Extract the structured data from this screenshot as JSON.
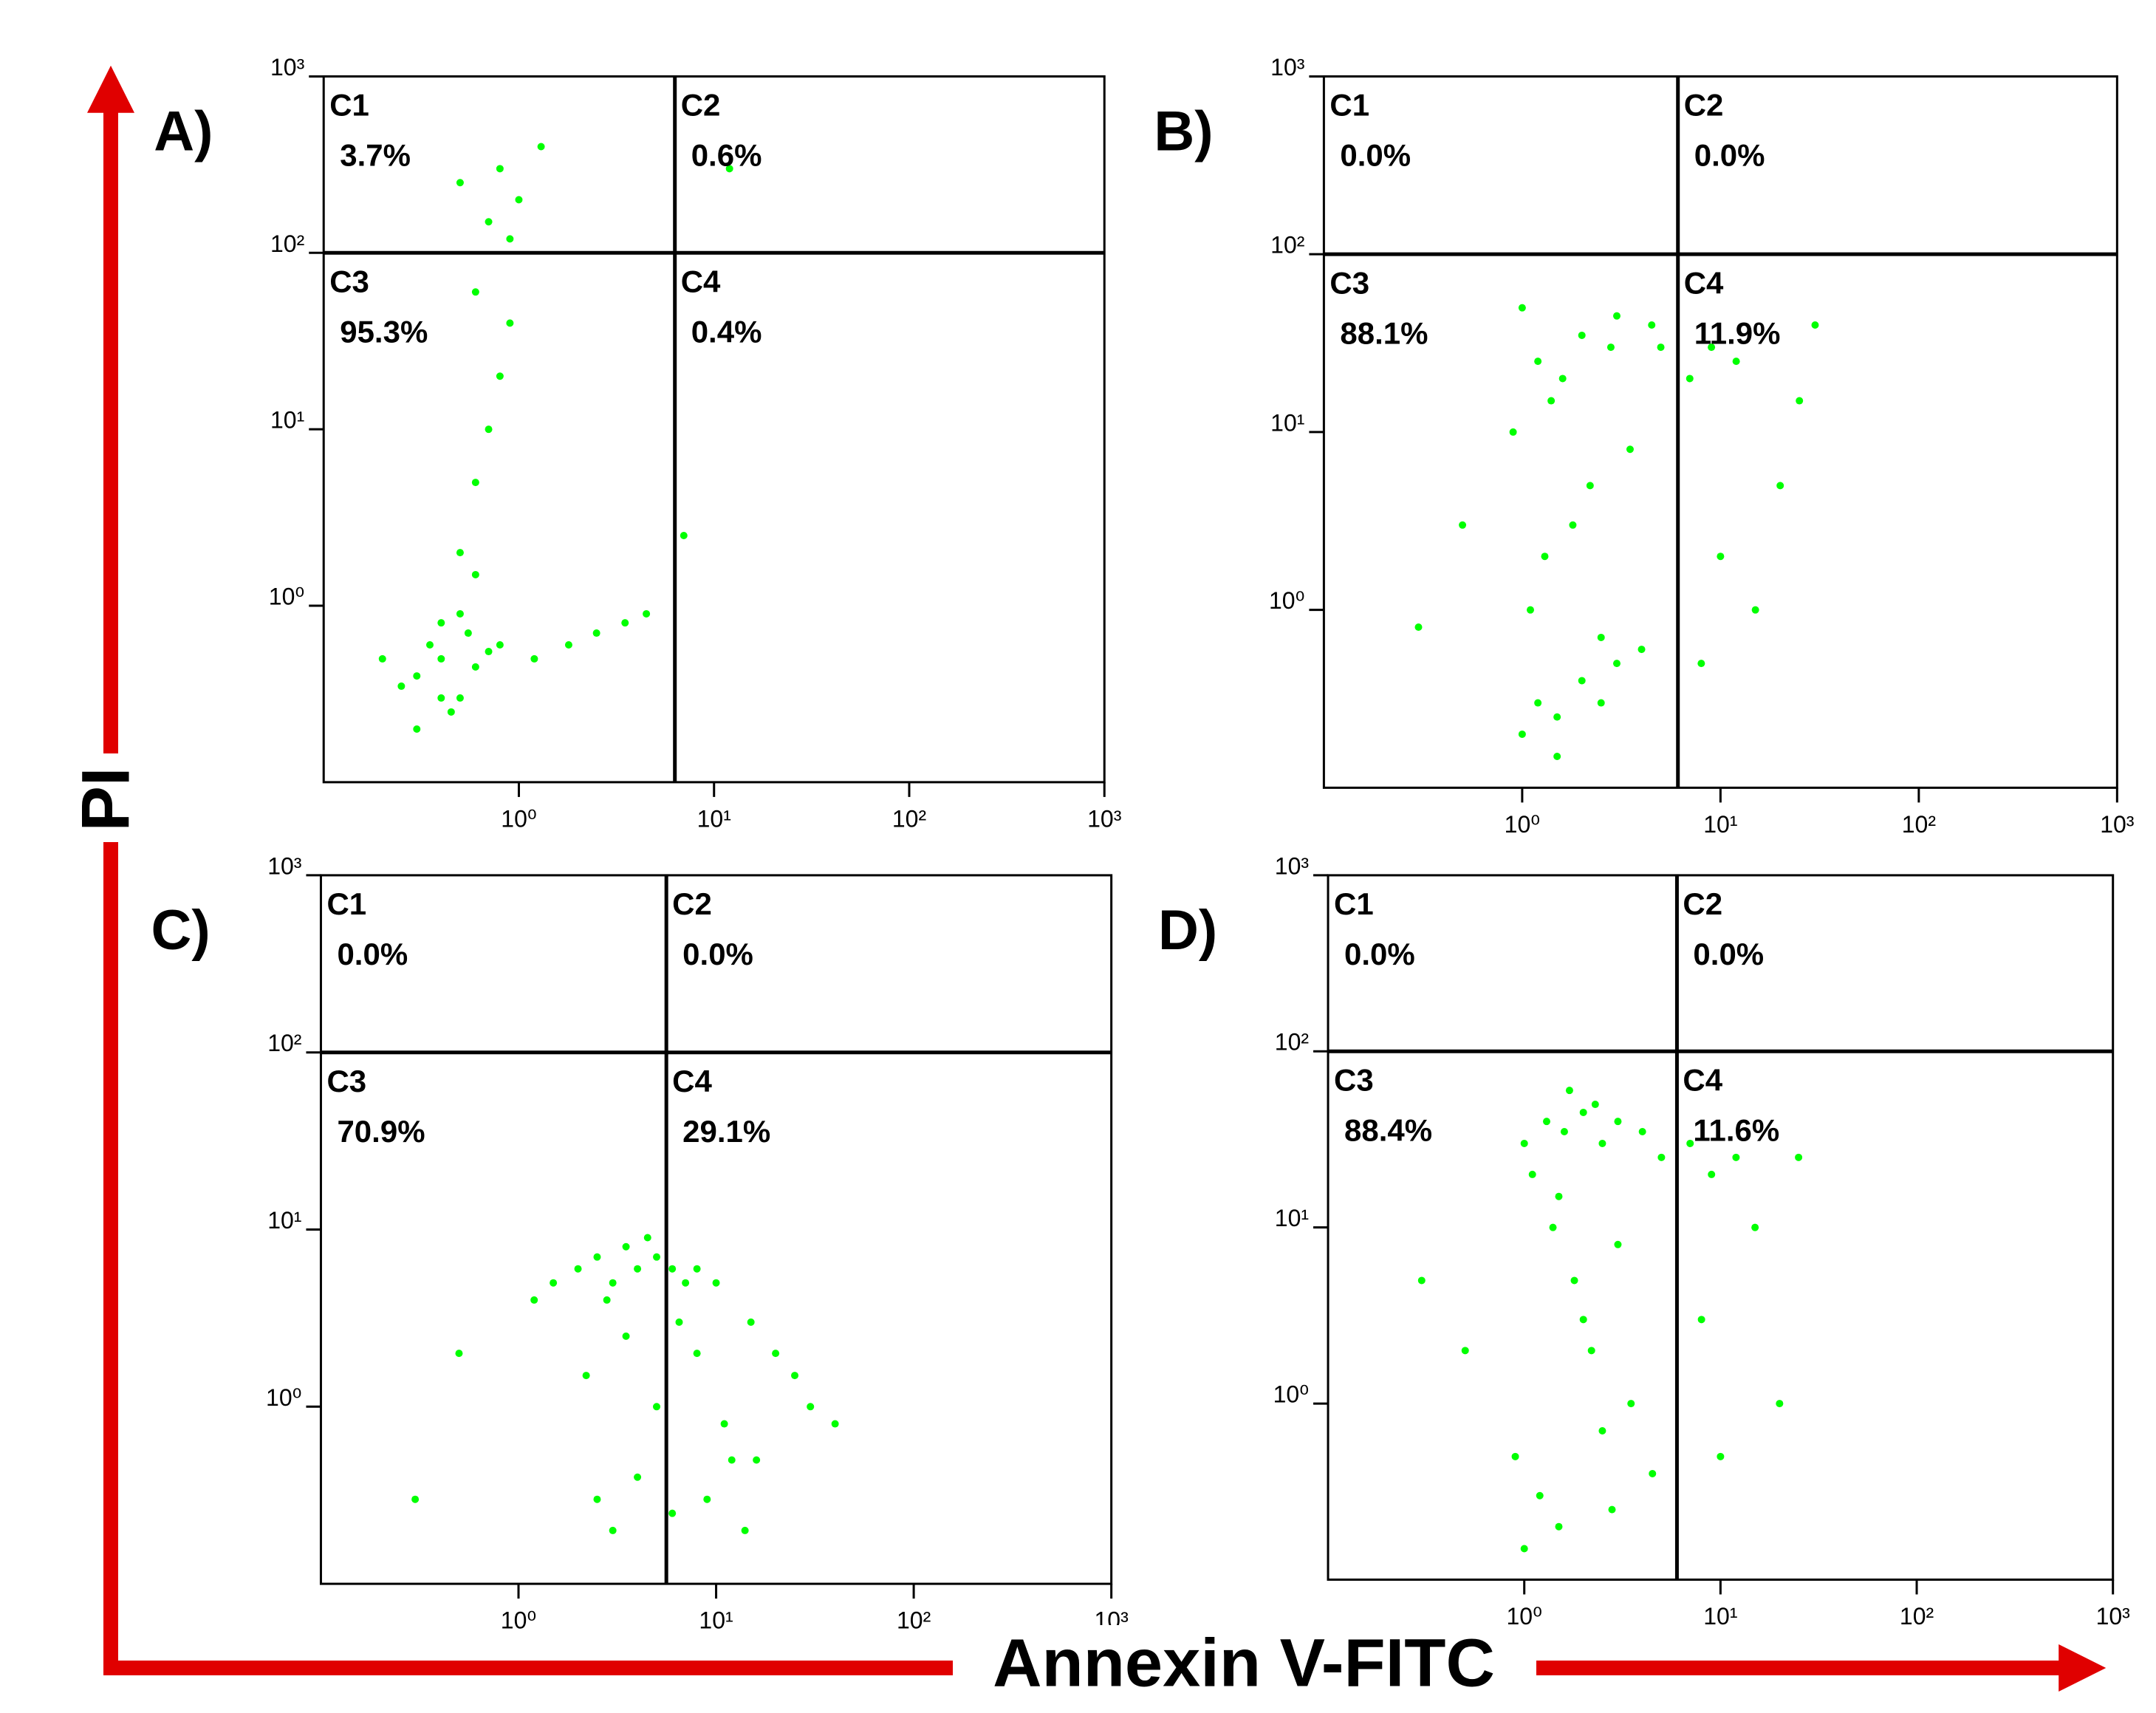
{
  "y_label": "PI",
  "x_label": "Annexin V-FITC",
  "chart_data": [
    {
      "type": "scatter",
      "title": "A)",
      "color": "#00ff00",
      "log_x": true,
      "log_y": true,
      "xlim": [
        0.1,
        1000
      ],
      "ylim": [
        0.1,
        1000
      ],
      "xticks": [
        {
          "value": 1,
          "label": "10⁰"
        },
        {
          "value": 10,
          "label": "10¹"
        },
        {
          "value": 100,
          "label": "10²"
        },
        {
          "value": 1000,
          "label": "10³"
        }
      ],
      "yticks": [
        {
          "value": 1,
          "label": "10⁰"
        },
        {
          "value": 10,
          "label": "10¹"
        },
        {
          "value": 100,
          "label": "10²"
        },
        {
          "value": 1000,
          "label": "10³"
        }
      ],
      "gate_x": 6.3,
      "gate_y": 100,
      "categories": [
        "C1",
        "C2",
        "C3",
        "C4"
      ],
      "values": [
        3.7,
        0.6,
        95.3,
        0.4
      ],
      "value_labels": [
        "3.7%",
        "0.6%",
        "95.3%",
        "0.4%"
      ],
      "x": [
        0.3,
        0.4,
        0.5,
        0.35,
        0.25,
        0.6,
        0.45,
        0.7,
        0.2,
        0.55,
        0.4,
        0.8,
        1.2,
        1.8,
        2.5,
        3.5,
        4.5,
        0.5,
        0.6,
        0.7,
        0.8,
        0.9,
        0.6,
        0.7,
        0.5,
        0.8,
        1.0,
        1.3,
        0.9,
        0.6,
        7,
        12,
        0.3,
        0.5,
        0.4
      ],
      "y": [
        0.4,
        0.5,
        0.3,
        0.6,
        0.35,
        0.45,
        0.25,
        0.55,
        0.5,
        0.7,
        0.8,
        0.6,
        0.5,
        0.6,
        0.7,
        0.8,
        0.9,
        2,
        5,
        10,
        20,
        40,
        60,
        150,
        250,
        300,
        200,
        400,
        120,
        1.5,
        2.5,
        300,
        0.2,
        0.9,
        0.3
      ]
    },
    {
      "type": "scatter",
      "title": "B)",
      "color": "#00ff00",
      "log_x": true,
      "log_y": true,
      "xlim": [
        0.1,
        1000
      ],
      "ylim": [
        0.1,
        1000
      ],
      "xticks": [
        {
          "value": 1,
          "label": "10⁰"
        },
        {
          "value": 10,
          "label": "10¹"
        },
        {
          "value": 100,
          "label": "10²"
        },
        {
          "value": 1000,
          "label": "10³"
        }
      ],
      "yticks": [
        {
          "value": 1,
          "label": "10⁰"
        },
        {
          "value": 10,
          "label": "10¹"
        },
        {
          "value": 100,
          "label": "10²"
        },
        {
          "value": 1000,
          "label": "10³"
        }
      ],
      "gate_x": 6.1,
      "gate_y": 100,
      "categories": [
        "C1",
        "C2",
        "C3",
        "C4"
      ],
      "values": [
        0.0,
        0.0,
        88.1,
        11.9
      ],
      "value_labels": [
        "0.0%",
        "0.0%",
        "88.1%",
        "11.9%"
      ],
      "x": [
        1,
        1.2,
        1.5,
        2,
        2.5,
        3,
        4,
        1.1,
        1.3,
        1.8,
        2.2,
        3.5,
        0.9,
        1.4,
        1.6,
        2.8,
        4.5,
        1,
        1.2,
        2,
        3,
        5,
        1.5,
        2.5,
        7,
        9,
        12,
        15,
        20,
        30,
        8,
        10,
        0.5,
        0.3,
        25
      ],
      "y": [
        0.2,
        0.3,
        0.25,
        0.4,
        0.3,
        0.5,
        0.6,
        1,
        2,
        3,
        5,
        8,
        10,
        15,
        20,
        30,
        40,
        50,
        25,
        35,
        45,
        30,
        0.15,
        0.7,
        20,
        30,
        25,
        1,
        5,
        40,
        0.5,
        2,
        3,
        0.8,
        15
      ]
    },
    {
      "type": "scatter",
      "title": "C)",
      "color": "#00ff00",
      "log_x": true,
      "log_y": true,
      "xlim": [
        0.1,
        1000
      ],
      "ylim": [
        0.1,
        1000
      ],
      "xticks": [
        {
          "value": 1,
          "label": "10⁰"
        },
        {
          "value": 10,
          "label": "10¹"
        },
        {
          "value": 100,
          "label": "10²"
        },
        {
          "value": 1000,
          "label": "10³"
        }
      ],
      "yticks": [
        {
          "value": 1,
          "label": "10⁰"
        },
        {
          "value": 10,
          "label": "10¹"
        },
        {
          "value": 100,
          "label": "10²"
        },
        {
          "value": 1000,
          "label": "10³"
        }
      ],
      "gate_x": 5.6,
      "gate_y": 100,
      "categories": [
        "C1",
        "C2",
        "C3",
        "C4"
      ],
      "values": [
        0.0,
        0.0,
        70.9,
        29.1
      ],
      "value_labels": [
        "0.0%",
        "0.0%",
        "70.9%",
        "29.1%"
      ],
      "x": [
        2,
        2.5,
        3,
        3.5,
        4,
        5,
        6,
        7,
        1.5,
        2.8,
        4.5,
        8,
        10,
        15,
        20,
        30,
        12,
        9,
        6,
        3,
        2.5,
        4,
        5,
        8,
        11,
        16,
        25,
        40,
        0.3,
        0.5,
        3.5,
        2.2,
        6.5,
        14,
        1.2
      ],
      "y": [
        6,
        7,
        5,
        8,
        6,
        7,
        6,
        5,
        5,
        4,
        9,
        6,
        5,
        3,
        2,
        1,
        0.5,
        0.3,
        0.25,
        0.2,
        0.3,
        0.4,
        1,
        2,
        0.8,
        0.5,
        1.5,
        0.8,
        0.3,
        2,
        2.5,
        1.5,
        3,
        0.2,
        4
      ]
    },
    {
      "type": "scatter",
      "title": "D)",
      "color": "#00ff00",
      "log_x": true,
      "log_y": true,
      "xlim": [
        0.1,
        1000
      ],
      "ylim": [
        0.1,
        1000
      ],
      "xticks": [
        {
          "value": 1,
          "label": "10⁰"
        },
        {
          "value": 10,
          "label": "10¹"
        },
        {
          "value": 100,
          "label": "10²"
        },
        {
          "value": 1000,
          "label": "10³"
        }
      ],
      "yticks": [
        {
          "value": 1,
          "label": "10⁰"
        },
        {
          "value": 10,
          "label": "10¹"
        },
        {
          "value": 100,
          "label": "10²"
        },
        {
          "value": 1000,
          "label": "10³"
        }
      ],
      "gate_x": 6.0,
      "gate_y": 100,
      "categories": [
        "C1",
        "C2",
        "C3",
        "C4"
      ],
      "values": [
        0.0,
        0.0,
        88.4,
        11.6
      ],
      "value_labels": [
        "0.0%",
        "0.0%",
        "88.4%",
        "11.6%"
      ],
      "x": [
        1,
        1.3,
        1.6,
        2,
        2.5,
        3,
        4,
        5,
        1.1,
        1.4,
        1.8,
        2.2,
        3.5,
        0.9,
        1.2,
        1.5,
        2.8,
        4.5,
        1,
        2,
        3,
        1.5,
        2.5,
        7,
        9,
        12,
        15,
        20,
        8,
        10,
        0.5,
        0.3,
        25,
        1.7,
        2.3
      ],
      "y": [
        30,
        40,
        35,
        45,
        30,
        40,
        35,
        25,
        20,
        10,
        5,
        2,
        1,
        0.5,
        0.3,
        0.2,
        0.25,
        0.4,
        0.15,
        3,
        8,
        15,
        0.7,
        30,
        20,
        25,
        10,
        1,
        3,
        0.5,
        2,
        5,
        25,
        60,
        50
      ]
    }
  ]
}
